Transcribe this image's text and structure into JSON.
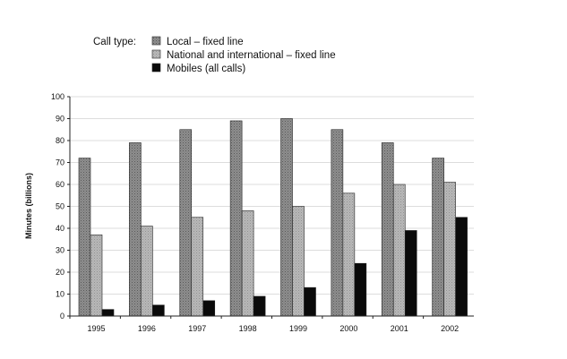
{
  "chart_data": {
    "type": "bar",
    "title": "",
    "xlabel": "",
    "ylabel": "Minutes (billions)",
    "ylim": [
      0,
      100
    ],
    "yticks": [
      0,
      10,
      20,
      30,
      40,
      50,
      60,
      70,
      80,
      90,
      100
    ],
    "grid": true,
    "legend_title": "Call type:",
    "legend_position": "top",
    "categories": [
      "1995",
      "1996",
      "1997",
      "1998",
      "1999",
      "2000",
      "2001",
      "2002"
    ],
    "series": [
      {
        "name": "Local – fixed line",
        "color": "#8c8c8c",
        "values": [
          72,
          79,
          85,
          89,
          90,
          85,
          79,
          72
        ]
      },
      {
        "name": "National and international – fixed line",
        "color": "#b4b4b4",
        "values": [
          37,
          41,
          45,
          48,
          50,
          56,
          60,
          61
        ]
      },
      {
        "name": "Mobiles (all calls)",
        "color": "#0a0a0a",
        "values": [
          3,
          5,
          7,
          9,
          13,
          24,
          39,
          45
        ]
      }
    ]
  }
}
